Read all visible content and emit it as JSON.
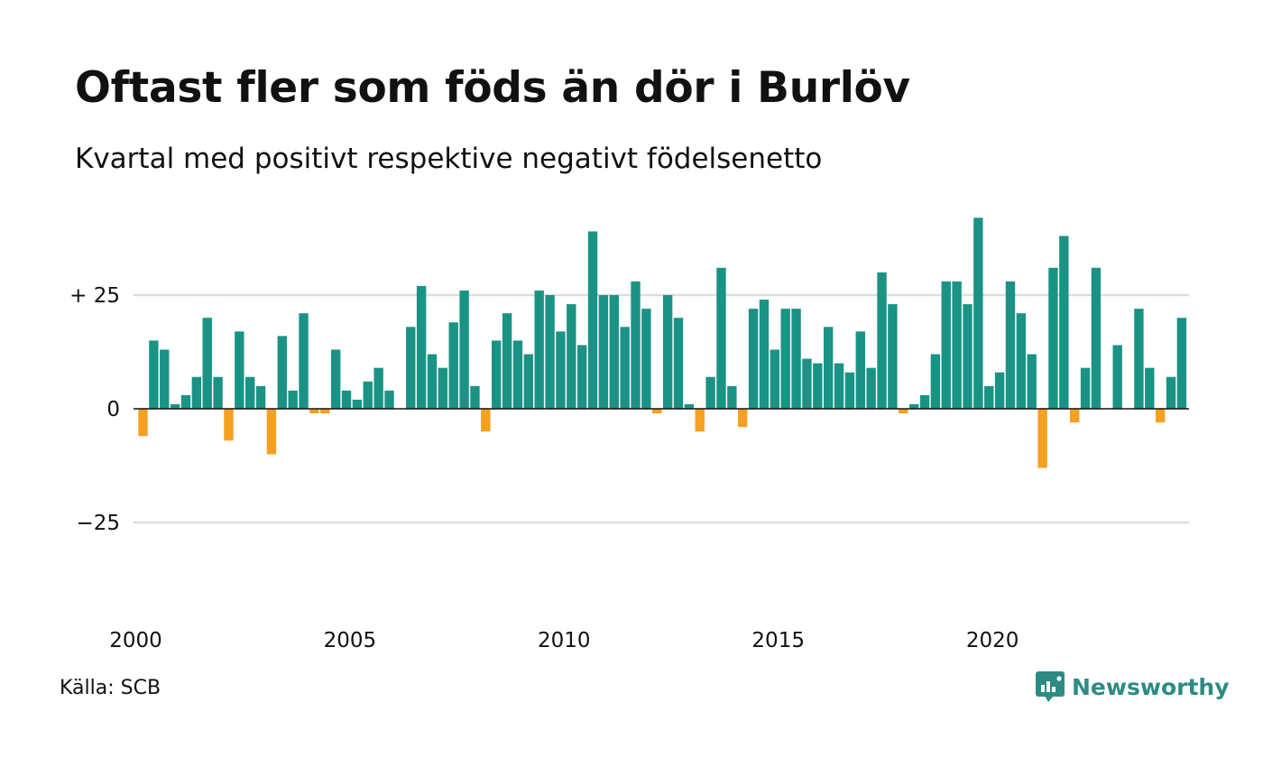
{
  "chart_data": {
    "type": "bar",
    "title": "Oftast fler som föds än dör i Burlöv",
    "subtitle": "Kvartal med positivt respektive negativt födelsenetto",
    "xlabel": "",
    "ylabel": "",
    "ylim": [
      -50,
      50
    ],
    "y_ticks": [
      {
        "value": 25,
        "label": "+ 25"
      },
      {
        "value": 0,
        "label": "0"
      },
      {
        "value": -25,
        "label": "−25"
      }
    ],
    "x_ticks": [
      {
        "value": 2000,
        "label": "2000"
      },
      {
        "value": 2005,
        "label": "2005"
      },
      {
        "value": 2010,
        "label": "2010"
      },
      {
        "value": 2015,
        "label": "2015"
      },
      {
        "value": 2020,
        "label": "2020"
      }
    ],
    "x_start": 2000,
    "periods_per_year": 4,
    "grid": true,
    "colors": {
      "positive": "#1a9385",
      "negative": "#f5a01f",
      "grid": "#dddddd",
      "axis": "#111111"
    },
    "values": [
      -6,
      15,
      13,
      1,
      3,
      7,
      20,
      7,
      -7,
      17,
      7,
      5,
      -10,
      16,
      4,
      21,
      -1,
      -1,
      13,
      4,
      2,
      6,
      9,
      4,
      0,
      18,
      27,
      12,
      9,
      19,
      26,
      5,
      -5,
      15,
      21,
      15,
      12,
      26,
      25,
      17,
      23,
      14,
      39,
      25,
      25,
      18,
      28,
      22,
      -1,
      25,
      20,
      1,
      -5,
      7,
      31,
      5,
      -4,
      22,
      24,
      13,
      22,
      22,
      11,
      10,
      18,
      10,
      8,
      17,
      9,
      30,
      23,
      -1,
      1,
      3,
      12,
      28,
      28,
      23,
      42,
      5,
      8,
      28,
      21,
      12,
      -13,
      31,
      38,
      -3,
      9,
      31,
      0,
      14,
      0,
      22,
      9,
      -3,
      7,
      20
    ]
  },
  "footer": {
    "source": "Källa: SCB",
    "brand": "Newsworthy",
    "brand_icon": "newsworthy-logo-icon"
  }
}
